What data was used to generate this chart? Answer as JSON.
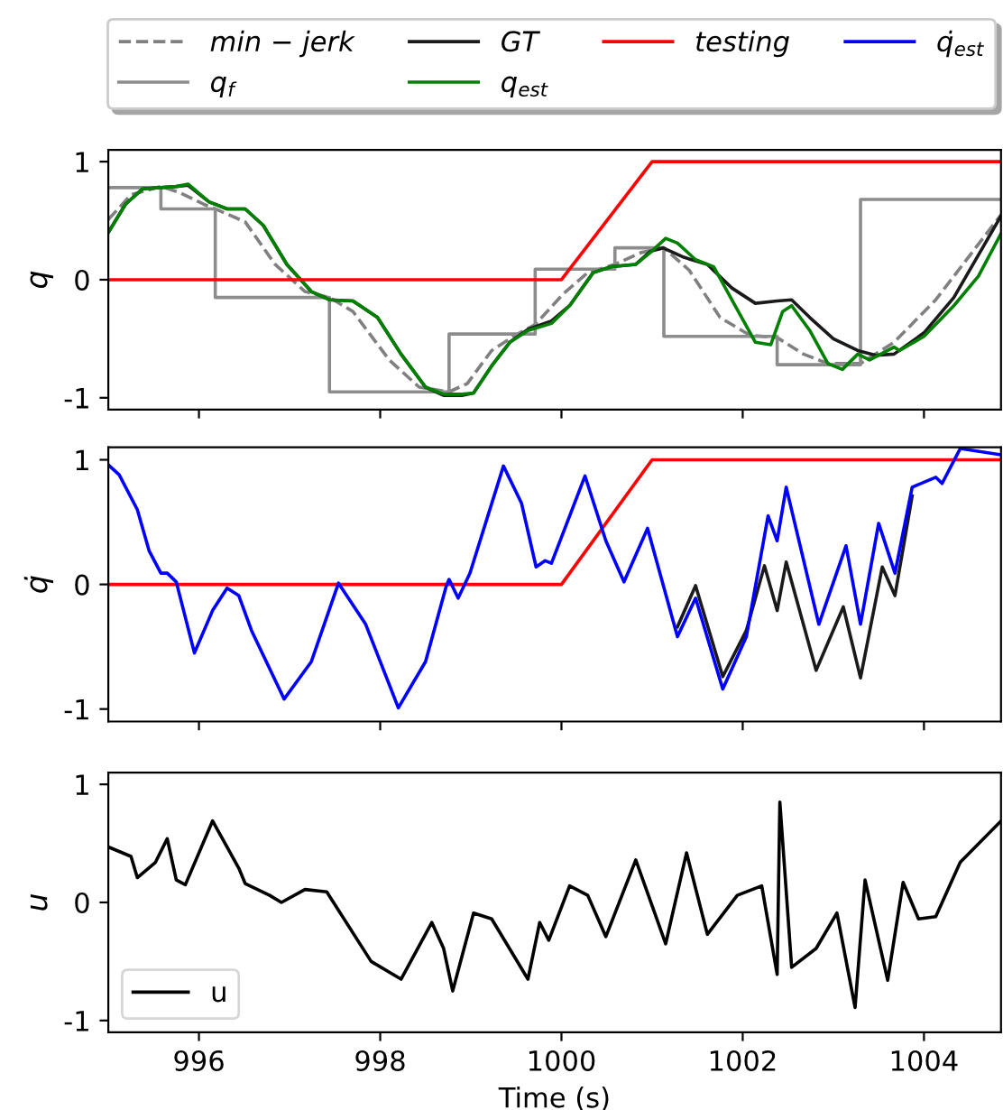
{
  "chart_data": [
    {
      "type": "line",
      "ylabel": "q",
      "xlim": [
        995,
        1004.85
      ],
      "ylim": [
        -1.1,
        1.1
      ],
      "xticks": [
        {
          "value": 996,
          "label": null
        },
        {
          "value": 998,
          "label": null
        },
        {
          "value": 1000,
          "label": null
        },
        {
          "value": 1002,
          "label": null
        },
        {
          "value": 1004,
          "label": null
        }
      ],
      "yticks": [
        -1,
        0,
        1
      ],
      "tick_labels": "y",
      "legend": "top",
      "grid": false,
      "series": [
        {
          "name": "min − jerk",
          "color": "#808080",
          "line_style": "dashed",
          "x": [
            995.0,
            995.25,
            995.58,
            995.78,
            996.05,
            996.18,
            996.51,
            996.84,
            997.17,
            997.44,
            997.7,
            998.1,
            998.43,
            998.76,
            998.96,
            999.23,
            999.49,
            999.71,
            1000.02,
            1000.29,
            1000.59,
            1000.88,
            1001.13,
            1001.41,
            1001.75,
            1002.08,
            1002.38,
            1002.67,
            1002.94,
            1003.3,
            1003.67,
            1004.13,
            1004.85
          ],
          "values": [
            0.51,
            0.72,
            0.79,
            0.74,
            0.64,
            0.6,
            0.49,
            0.13,
            -0.1,
            -0.15,
            -0.27,
            -0.68,
            -0.91,
            -0.95,
            -0.88,
            -0.6,
            -0.47,
            -0.38,
            -0.12,
            0.06,
            0.13,
            0.23,
            0.27,
            0.08,
            -0.32,
            -0.47,
            -0.49,
            -0.63,
            -0.71,
            -0.71,
            -0.53,
            -0.17,
            0.55
          ]
        },
        {
          "name": "q$_{f}$",
          "type": "step",
          "color": "#8c8c8c",
          "x": [
            995.0,
            995.58,
            996.18,
            997.44,
            998.76,
            999.71,
            1000.59,
            1001.13,
            1002.38,
            1003.3,
            1004.85
          ],
          "values": [
            0.78,
            0.6,
            -0.15,
            -0.95,
            -0.46,
            0.09,
            0.27,
            -0.48,
            -0.72,
            0.68,
            0.68
          ]
        },
        {
          "name": "GT",
          "color": "#1a1a1a",
          "x": [
            995.0,
            995.19,
            995.38,
            995.75,
            995.88,
            996.11,
            996.31,
            996.51,
            996.71,
            996.97,
            997.24,
            997.44,
            997.7,
            997.97,
            998.23,
            998.5,
            998.7,
            998.9,
            999.03,
            999.23,
            999.43,
            999.63,
            999.89,
            1000.09,
            1000.35,
            1000.55,
            1000.82,
            1000.98,
            1001.12,
            1001.35,
            1001.61,
            1001.88,
            1002.14,
            1002.38,
            1002.54,
            1002.74,
            1003.0,
            1003.27,
            1003.47,
            1003.67,
            1004.0,
            1004.33,
            1004.85
          ],
          "values": [
            0.4,
            0.64,
            0.77,
            0.79,
            0.8,
            0.66,
            0.6,
            0.6,
            0.46,
            0.13,
            -0.1,
            -0.17,
            -0.18,
            -0.32,
            -0.63,
            -0.91,
            -0.98,
            -0.98,
            -0.96,
            -0.73,
            -0.53,
            -0.42,
            -0.35,
            -0.22,
            0.06,
            0.11,
            0.13,
            0.24,
            0.27,
            0.19,
            0.13,
            -0.07,
            -0.2,
            -0.18,
            -0.17,
            -0.32,
            -0.5,
            -0.6,
            -0.64,
            -0.63,
            -0.45,
            -0.15,
            0.54
          ]
        },
        {
          "name": "q$_{est}$",
          "color": "#008000",
          "x": [
            995.0,
            995.19,
            995.38,
            995.75,
            995.88,
            996.11,
            996.31,
            996.51,
            996.71,
            996.97,
            997.24,
            997.44,
            997.7,
            997.97,
            998.23,
            998.5,
            998.7,
            998.9,
            999.03,
            999.23,
            999.43,
            999.63,
            999.89,
            1000.09,
            1000.35,
            1000.55,
            1000.82,
            1000.98,
            1001.15,
            1001.28,
            1001.48,
            1001.68,
            1001.88,
            1002.14,
            1002.31,
            1002.44,
            1002.54,
            1002.74,
            1002.94,
            1003.1,
            1003.27,
            1003.4,
            1003.67,
            1003.73,
            1004.0,
            1004.33,
            1004.6,
            1004.85
          ],
          "values": [
            0.4,
            0.64,
            0.77,
            0.79,
            0.81,
            0.66,
            0.6,
            0.6,
            0.46,
            0.13,
            -0.1,
            -0.17,
            -0.18,
            -0.32,
            -0.63,
            -0.91,
            -0.97,
            -0.97,
            -0.96,
            -0.73,
            -0.53,
            -0.43,
            -0.37,
            -0.22,
            0.06,
            0.11,
            0.13,
            0.23,
            0.35,
            0.31,
            0.17,
            0.11,
            -0.17,
            -0.53,
            -0.55,
            -0.27,
            -0.22,
            -0.43,
            -0.71,
            -0.76,
            -0.63,
            -0.68,
            -0.57,
            -0.6,
            -0.48,
            -0.22,
            0.03,
            0.39
          ]
        },
        {
          "name": "testing",
          "color": "#ff0000",
          "x": [
            995.0,
            1000.0,
            1001.0,
            1004.85
          ],
          "values": [
            0,
            0,
            1,
            1
          ]
        }
      ]
    },
    {
      "type": "line",
      "ylabel": "q̇",
      "xlim": [
        995,
        1004.85
      ],
      "ylim": [
        -1.1,
        1.1
      ],
      "xticks": [
        {
          "value": 996,
          "label": null
        },
        {
          "value": 998,
          "label": null
        },
        {
          "value": 1000,
          "label": null
        },
        {
          "value": 1002,
          "label": null
        },
        {
          "value": 1004,
          "label": null
        }
      ],
      "yticks": [
        -1,
        0,
        1
      ],
      "tick_labels": "y",
      "legend": "top",
      "grid": false,
      "series": [
        {
          "name": "GT",
          "color": "#1a1a1a",
          "x": [
            1001.28,
            1001.48,
            1001.78,
            1002.04,
            1002.24,
            1002.38,
            1002.48,
            1002.81,
            1003.11,
            1003.3,
            1003.54,
            1003.68,
            1003.87
          ],
          "values": [
            -0.34,
            -0.01,
            -0.74,
            -0.37,
            0.15,
            -0.21,
            0.18,
            -0.69,
            -0.18,
            -0.75,
            0.14,
            -0.09,
            0.71
          ]
        },
        {
          "name": "testing",
          "color": "#ff0000",
          "x": [
            995.0,
            1000.0,
            1001.0,
            1004.85
          ],
          "values": [
            0,
            0,
            1,
            1
          ]
        },
        {
          "name": "q̇$_{est}$",
          "color": "#0000ff",
          "x": [
            995.0,
            995.12,
            995.32,
            995.45,
            995.58,
            995.65,
            995.75,
            995.95,
            996.15,
            996.31,
            996.44,
            996.58,
            996.94,
            997.24,
            997.54,
            997.84,
            998.2,
            998.5,
            998.73,
            998.76,
            998.86,
            998.99,
            999.36,
            999.56,
            999.72,
            999.82,
            999.89,
            1000.26,
            1000.49,
            1000.69,
            1000.95,
            1001.28,
            1001.48,
            1001.78,
            1002.04,
            1002.28,
            1002.38,
            1002.48,
            1002.84,
            1003.14,
            1003.3,
            1003.5,
            1003.68,
            1003.87,
            1004.13,
            1004.2,
            1004.4,
            1004.85
          ],
          "values": [
            0.96,
            0.88,
            0.6,
            0.27,
            0.09,
            0.09,
            0.02,
            -0.55,
            -0.21,
            -0.03,
            -0.09,
            -0.37,
            -0.92,
            -0.62,
            0.01,
            -0.32,
            -0.99,
            -0.62,
            -0.01,
            0.04,
            -0.11,
            0.09,
            0.95,
            0.65,
            0.14,
            0.19,
            0.17,
            0.87,
            0.35,
            0.02,
            0.45,
            -0.42,
            -0.11,
            -0.84,
            -0.42,
            0.55,
            0.35,
            0.78,
            -0.32,
            0.31,
            -0.32,
            0.49,
            0.09,
            0.78,
            0.86,
            0.81,
            1.09,
            1.04
          ]
        }
      ]
    },
    {
      "type": "line",
      "ylabel": "u",
      "xlabel": "Time (s)",
      "xlim": [
        995,
        1004.85
      ],
      "ylim": [
        -1.1,
        1.1
      ],
      "xticks": [
        996,
        998,
        1000,
        1002,
        1004
      ],
      "yticks": [
        -1,
        0,
        1
      ],
      "legend": "bottom left",
      "grid": false,
      "series": [
        {
          "name": "u",
          "color": "#000000",
          "x": [
            995.0,
            995.25,
            995.32,
            995.52,
            995.65,
            995.75,
            995.85,
            996.15,
            996.44,
            996.51,
            996.78,
            996.91,
            997.17,
            997.41,
            997.9,
            998.23,
            998.57,
            998.7,
            998.8,
            999.03,
            999.23,
            999.63,
            999.76,
            999.86,
            1000.09,
            1000.29,
            1000.49,
            1000.82,
            1001.15,
            1001.38,
            1001.61,
            1001.94,
            1002.21,
            1002.38,
            1002.41,
            1002.54,
            1002.81,
            1003.04,
            1003.24,
            1003.35,
            1003.6,
            1003.77,
            1003.94,
            1004.13,
            1004.4,
            1004.85
          ],
          "values": [
            0.47,
            0.39,
            0.21,
            0.34,
            0.54,
            0.19,
            0.15,
            0.69,
            0.29,
            0.16,
            0.06,
            0.0,
            0.11,
            0.09,
            -0.5,
            -0.65,
            -0.17,
            -0.39,
            -0.75,
            -0.09,
            -0.14,
            -0.65,
            -0.17,
            -0.32,
            0.14,
            0.06,
            -0.29,
            0.36,
            -0.35,
            0.42,
            -0.27,
            0.06,
            0.14,
            -0.61,
            0.85,
            -0.55,
            -0.39,
            -0.09,
            -0.89,
            0.19,
            -0.66,
            0.17,
            -0.14,
            -0.12,
            0.34,
            0.69
          ]
        }
      ]
    }
  ]
}
